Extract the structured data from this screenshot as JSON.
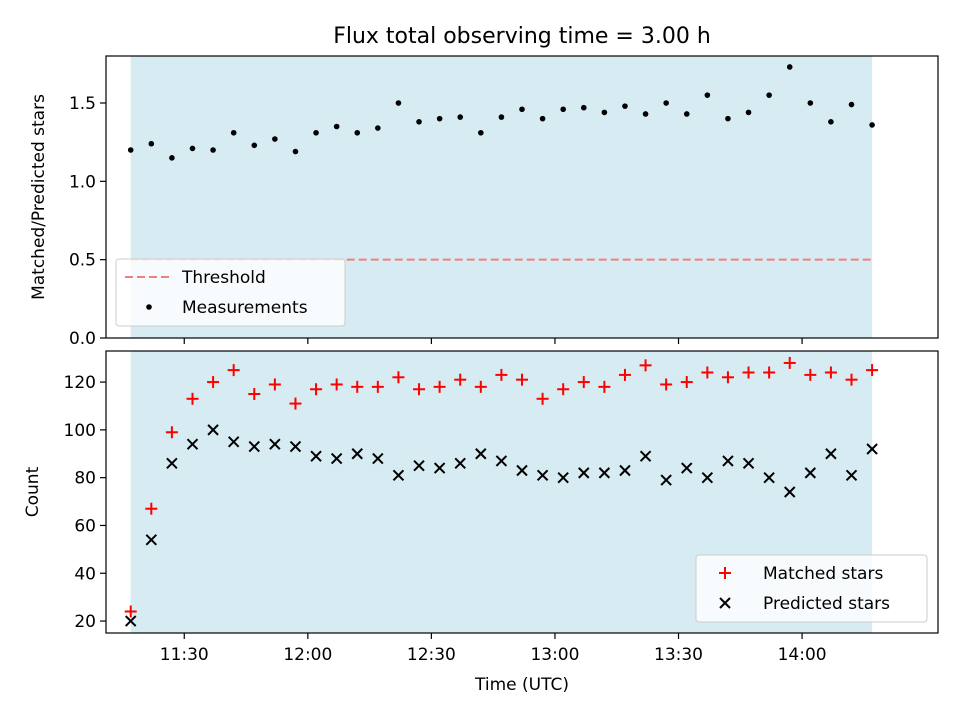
{
  "chart_data": [
    {
      "type": "scatter",
      "title": "Flux total observing time = 3.00 h",
      "xlabel": "",
      "ylabel": "Matched/Predicted stars",
      "x_axis": "time (UTC, HH:MM)",
      "xlim": [
        "11:11",
        "14:33"
      ],
      "ylim": [
        0,
        1.8
      ],
      "yticks": [
        0.0,
        0.5,
        1.0,
        1.5
      ],
      "ytick_labels": [
        "0.0",
        "0.5",
        "1.0",
        "1.5"
      ],
      "shaded_span": {
        "from": "11:17",
        "to": "14:17",
        "color": "#add8e6"
      },
      "threshold": {
        "name": "Threshold",
        "value": 0.5,
        "color": "#f08080",
        "style": "dashed"
      },
      "legend": {
        "position": "lower left",
        "entries": [
          "Threshold",
          "Measurements"
        ]
      },
      "series": [
        {
          "name": "Measurements",
          "marker": "dot",
          "color": "#000000",
          "x": [
            "11:17",
            "11:22",
            "11:27",
            "11:32",
            "11:37",
            "11:42",
            "11:47",
            "11:52",
            "11:57",
            "12:02",
            "12:07",
            "12:12",
            "12:17",
            "12:22",
            "12:27",
            "12:32",
            "12:37",
            "12:42",
            "12:47",
            "12:52",
            "12:57",
            "13:02",
            "13:07",
            "13:12",
            "13:17",
            "13:22",
            "13:27",
            "13:32",
            "13:37",
            "13:42",
            "13:47",
            "13:52",
            "13:57",
            "14:02",
            "14:07",
            "14:12",
            "14:17"
          ],
          "y": [
            1.2,
            1.24,
            1.15,
            1.21,
            1.2,
            1.31,
            1.23,
            1.27,
            1.19,
            1.31,
            1.35,
            1.31,
            1.34,
            1.5,
            1.38,
            1.4,
            1.41,
            1.31,
            1.41,
            1.46,
            1.4,
            1.46,
            1.47,
            1.44,
            1.48,
            1.43,
            1.5,
            1.43,
            1.55,
            1.4,
            1.44,
            1.55,
            1.73,
            1.5,
            1.38,
            1.49,
            1.36
          ]
        }
      ]
    },
    {
      "type": "scatter",
      "title": "",
      "xlabel": "Time (UTC)",
      "ylabel": "Count",
      "x_axis": "time (UTC, HH:MM)",
      "xlim": [
        "11:11",
        "14:33"
      ],
      "xticks": [
        "11:30",
        "12:00",
        "12:30",
        "13:00",
        "13:30",
        "14:00"
      ],
      "ylim": [
        15,
        133
      ],
      "yticks": [
        20,
        40,
        60,
        80,
        100,
        120
      ],
      "ytick_labels": [
        "20",
        "40",
        "60",
        "80",
        "100",
        "120"
      ],
      "shaded_span": {
        "from": "11:17",
        "to": "14:17",
        "color": "#add8e6"
      },
      "legend": {
        "position": "lower right",
        "entries": [
          "Matched stars",
          "Predicted stars"
        ]
      },
      "x": [
        "11:17",
        "11:22",
        "11:27",
        "11:32",
        "11:37",
        "11:42",
        "11:47",
        "11:52",
        "11:57",
        "12:02",
        "12:07",
        "12:12",
        "12:17",
        "12:22",
        "12:27",
        "12:32",
        "12:37",
        "12:42",
        "12:47",
        "12:52",
        "12:57",
        "13:02",
        "13:07",
        "13:12",
        "13:17",
        "13:22",
        "13:27",
        "13:32",
        "13:37",
        "13:42",
        "13:47",
        "13:52",
        "13:57",
        "14:02",
        "14:07",
        "14:12",
        "14:17"
      ],
      "series": [
        {
          "name": "Matched stars",
          "marker": "plus",
          "color": "#ff0000",
          "values": [
            24,
            67,
            99,
            113,
            120,
            125,
            115,
            119,
            111,
            117,
            119,
            118,
            118,
            122,
            117,
            118,
            121,
            118,
            123,
            121,
            113,
            117,
            120,
            118,
            123,
            127,
            119,
            120,
            124,
            122,
            124,
            124,
            128,
            123,
            124,
            121,
            125
          ]
        },
        {
          "name": "Predicted stars",
          "marker": "x",
          "color": "#000000",
          "values": [
            20,
            54,
            86,
            94,
            100,
            95,
            93,
            94,
            93,
            89,
            88,
            90,
            88,
            81,
            85,
            84,
            86,
            90,
            87,
            83,
            81,
            80,
            82,
            82,
            83,
            89,
            79,
            84,
            80,
            87,
            86,
            80,
            74,
            82,
            90,
            81,
            92
          ]
        }
      ]
    }
  ]
}
